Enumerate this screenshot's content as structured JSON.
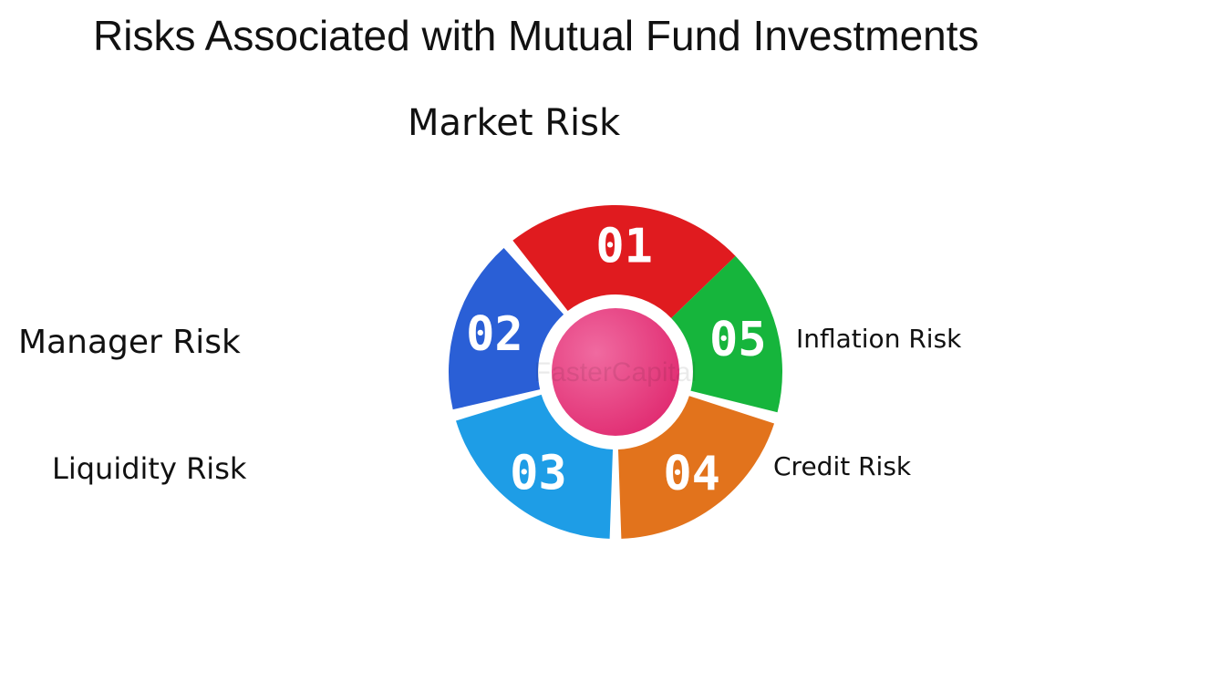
{
  "title": "Risks Associated with Mutual Fund Investments",
  "watermark": "FasterCapital",
  "segments": [
    {
      "number": "01",
      "label": "Market Risk",
      "color": "#e01b1f"
    },
    {
      "number": "02",
      "label": "Manager Risk",
      "color": "#2a5fd6"
    },
    {
      "number": "03",
      "label": "Liquidity Risk",
      "color": "#1e9de6"
    },
    {
      "number": "04",
      "label": "Credit Risk",
      "color": "#e2731c"
    },
    {
      "number": "05",
      "label": "Inflation Risk",
      "color": "#16b53c"
    }
  ],
  "center_color": "#e8357a"
}
